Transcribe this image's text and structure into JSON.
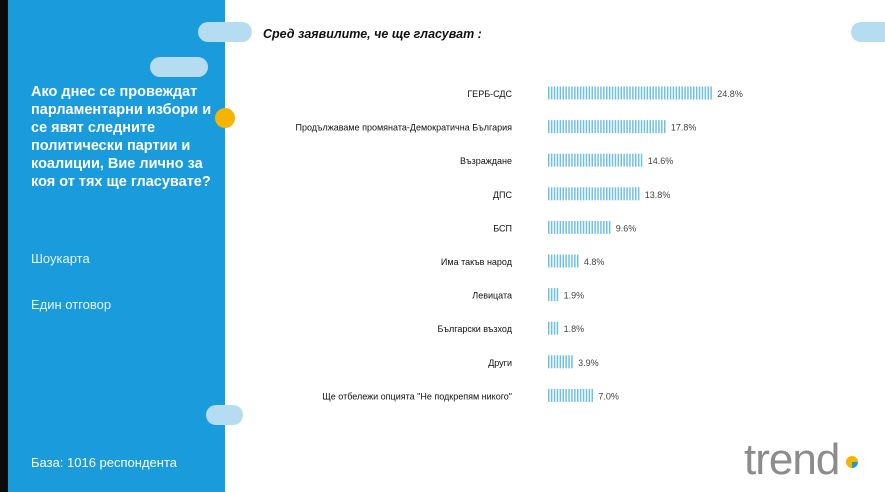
{
  "sidebar": {
    "question": "Ако днес се провеждат парламентарни избори и се явят следните политически партии и коалиции, Вие лично за коя от тях ще гласувате?",
    "method": "Шоукарта",
    "answer_type": "Един отговор",
    "base": "База:  1016 респондента"
  },
  "header": {
    "subtitle": "Сред заявилите, че ще гласуват :"
  },
  "colors": {
    "sidebar": "#1a9bdc",
    "bar": "#6ec0e4",
    "accent": "#f5b400",
    "pill": "#b6dcf2",
    "logo": "#8c8c8c"
  },
  "logo": {
    "text": "trend"
  },
  "chart_data": {
    "type": "bar",
    "orientation": "horizontal",
    "categories": [
      "ГЕРБ-СДС",
      "Продължаваме промяната-Демократична България",
      "Възраждане",
      "ДПС",
      "БСП",
      "Има такъв народ",
      "Левицата",
      "Български възход",
      "Други",
      "Ще отбележи опцията \"Не подкрепям никого\""
    ],
    "values": [
      24.8,
      17.8,
      14.6,
      13.8,
      9.6,
      4.8,
      1.9,
      1.8,
      3.9,
      7.0
    ],
    "labels": [
      "24.8%",
      "17.8%",
      "14.6%",
      "13.8%",
      "9.6%",
      "4.8%",
      "1.9%",
      "1.8%",
      "3.9%",
      "7.0%"
    ],
    "xlim": [
      0,
      25
    ],
    "grid": false,
    "legend": "none"
  }
}
